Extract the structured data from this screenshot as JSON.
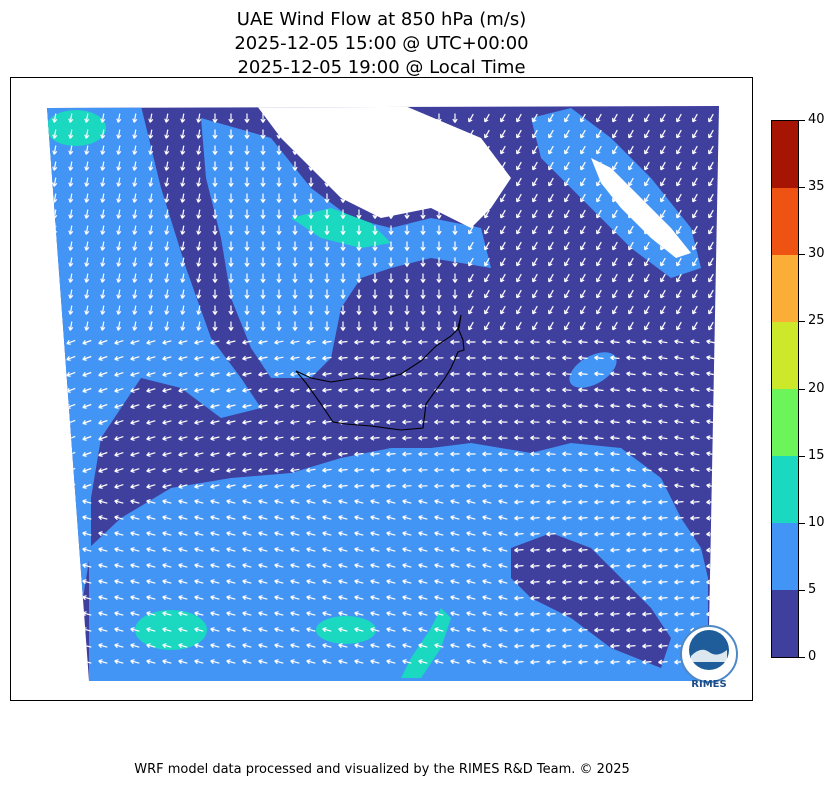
{
  "title": {
    "line1": "UAE Wind Flow at 850 hPa (m/s)",
    "line2": "2025-12-05 15:00 @ UTC+00:00",
    "line3": "2025-12-05 19:00 @ Local Time"
  },
  "colorbar": {
    "ticks": [
      "0",
      "5",
      "10",
      "15",
      "20",
      "25",
      "30",
      "35",
      "40"
    ],
    "bands": [
      {
        "from": 0,
        "to": 5,
        "color": "#3f3f9e"
      },
      {
        "from": 5,
        "to": 10,
        "color": "#4395f5"
      },
      {
        "from": 10,
        "to": 15,
        "color": "#1ad9c0"
      },
      {
        "from": 15,
        "to": 20,
        "color": "#6bf55a"
      },
      {
        "from": 20,
        "to": 25,
        "color": "#cde82b"
      },
      {
        "from": 25,
        "to": 30,
        "color": "#fbae37"
      },
      {
        "from": 30,
        "to": 35,
        "color": "#ef5314"
      },
      {
        "from": 35,
        "to": 40,
        "color": "#a61404"
      }
    ],
    "range": [
      0,
      40
    ]
  },
  "logo": {
    "text": "RIMES",
    "ring_text": "Regional Integrated Multi-Hazard Early Warning System"
  },
  "footer": "WRF model data processed and visualized by the RIMES R&D Team. © 2025"
}
